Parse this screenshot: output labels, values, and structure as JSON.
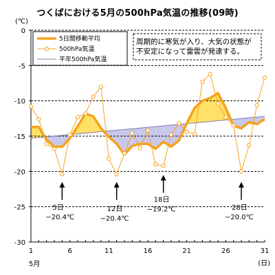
{
  "title": "つくばにおける5月の500hPa気温の推移(09時)",
  "unit_label": "(℃)",
  "x_unit_label": "(日)",
  "x_month_label": "5月",
  "note_lines": [
    "周期的に寒気が入り、大気の状態が",
    "不安定になって雷雲が発達する。"
  ],
  "colors": {
    "moving_avg": "#f7a21b",
    "daily": "#f7a21b",
    "normal_line": "#7c7cae",
    "fill_warm": "#ffe066",
    "fill_cold": "#c8c8ec",
    "grid": "#000000"
  },
  "annotations": [
    {
      "day": 5,
      "arrow_value": -21.5,
      "date": "5日",
      "temp": "−20.4℃",
      "label_value": -25.4
    },
    {
      "day": 12,
      "arrow_value": -21.5,
      "date": "12日",
      "temp": "−20.4℃",
      "label_value": -25.6
    },
    {
      "day": 18,
      "arrow_value": -20.5,
      "date": "18日",
      "temp": "−19.2℃",
      "label_value": -24.3
    },
    {
      "day": 28,
      "arrow_value": -21.5,
      "date": "28日",
      "temp": "−20.0℃",
      "label_value": -25.4
    }
  ],
  "chart_data": {
    "type": "line",
    "title": "つくばにおける5月の500hPa気温の推移(09時)",
    "ylabel": "(℃)",
    "xlabel": "(日)",
    "xlim": [
      1,
      31
    ],
    "ylim": [
      -30,
      0
    ],
    "y_ticks": [
      0,
      -5,
      -10,
      -15,
      -20,
      -25,
      -30
    ],
    "x_ticks": [
      1,
      6,
      11,
      16,
      21,
      26,
      31
    ],
    "grid": "horizontal dashed",
    "legend_position": "top-left",
    "series": [
      {
        "name": "5日間移動平均",
        "x": [
          1,
          2,
          3,
          4,
          5,
          6,
          7,
          8,
          9,
          10,
          11,
          12,
          13,
          14,
          15,
          16,
          17,
          18,
          19,
          20,
          21,
          22,
          23,
          24,
          25,
          26,
          27,
          28,
          29,
          30,
          31
        ],
        "values": [
          -13.7,
          -13.7,
          -15.5,
          -16.5,
          -16.5,
          -15.3,
          -13.6,
          -11.8,
          -12.2,
          -13.9,
          -15.1,
          -16.1,
          -17.6,
          -16.4,
          -16.1,
          -16.1,
          -16.8,
          -15.8,
          -16.5,
          -15.6,
          -13.2,
          -11.0,
          -10.0,
          -9.6,
          -8.9,
          -11.0,
          -13.5,
          -13.9,
          -13.0,
          -13.3,
          -12.6
        ]
      },
      {
        "name": "500hPa気温",
        "x": [
          1,
          2,
          3,
          4,
          5,
          6,
          7,
          8,
          9,
          10,
          11,
          12,
          13,
          14,
          15,
          16,
          17,
          18,
          19,
          20,
          21,
          22,
          23,
          24,
          25,
          26,
          27,
          28,
          29,
          30,
          31
        ],
        "values": [
          -10.8,
          -12.6,
          -16.1,
          -16.8,
          -20.4,
          -14.8,
          -12.3,
          -11.8,
          -9.4,
          -8.0,
          -18.2,
          -20.4,
          -17.4,
          -14.6,
          -16.7,
          -14.2,
          -19.0,
          -19.2,
          -14.8,
          -13.2,
          -14.4,
          -14.7,
          -7.3,
          -6.2,
          -10.4,
          -12.3,
          -13.5,
          -20.0,
          -16.3,
          -10.6,
          -6.7
        ]
      },
      {
        "name": "平年500hPa気温",
        "x": [
          1,
          31
        ],
        "values": [
          -15.3,
          -12.2
        ]
      }
    ]
  }
}
